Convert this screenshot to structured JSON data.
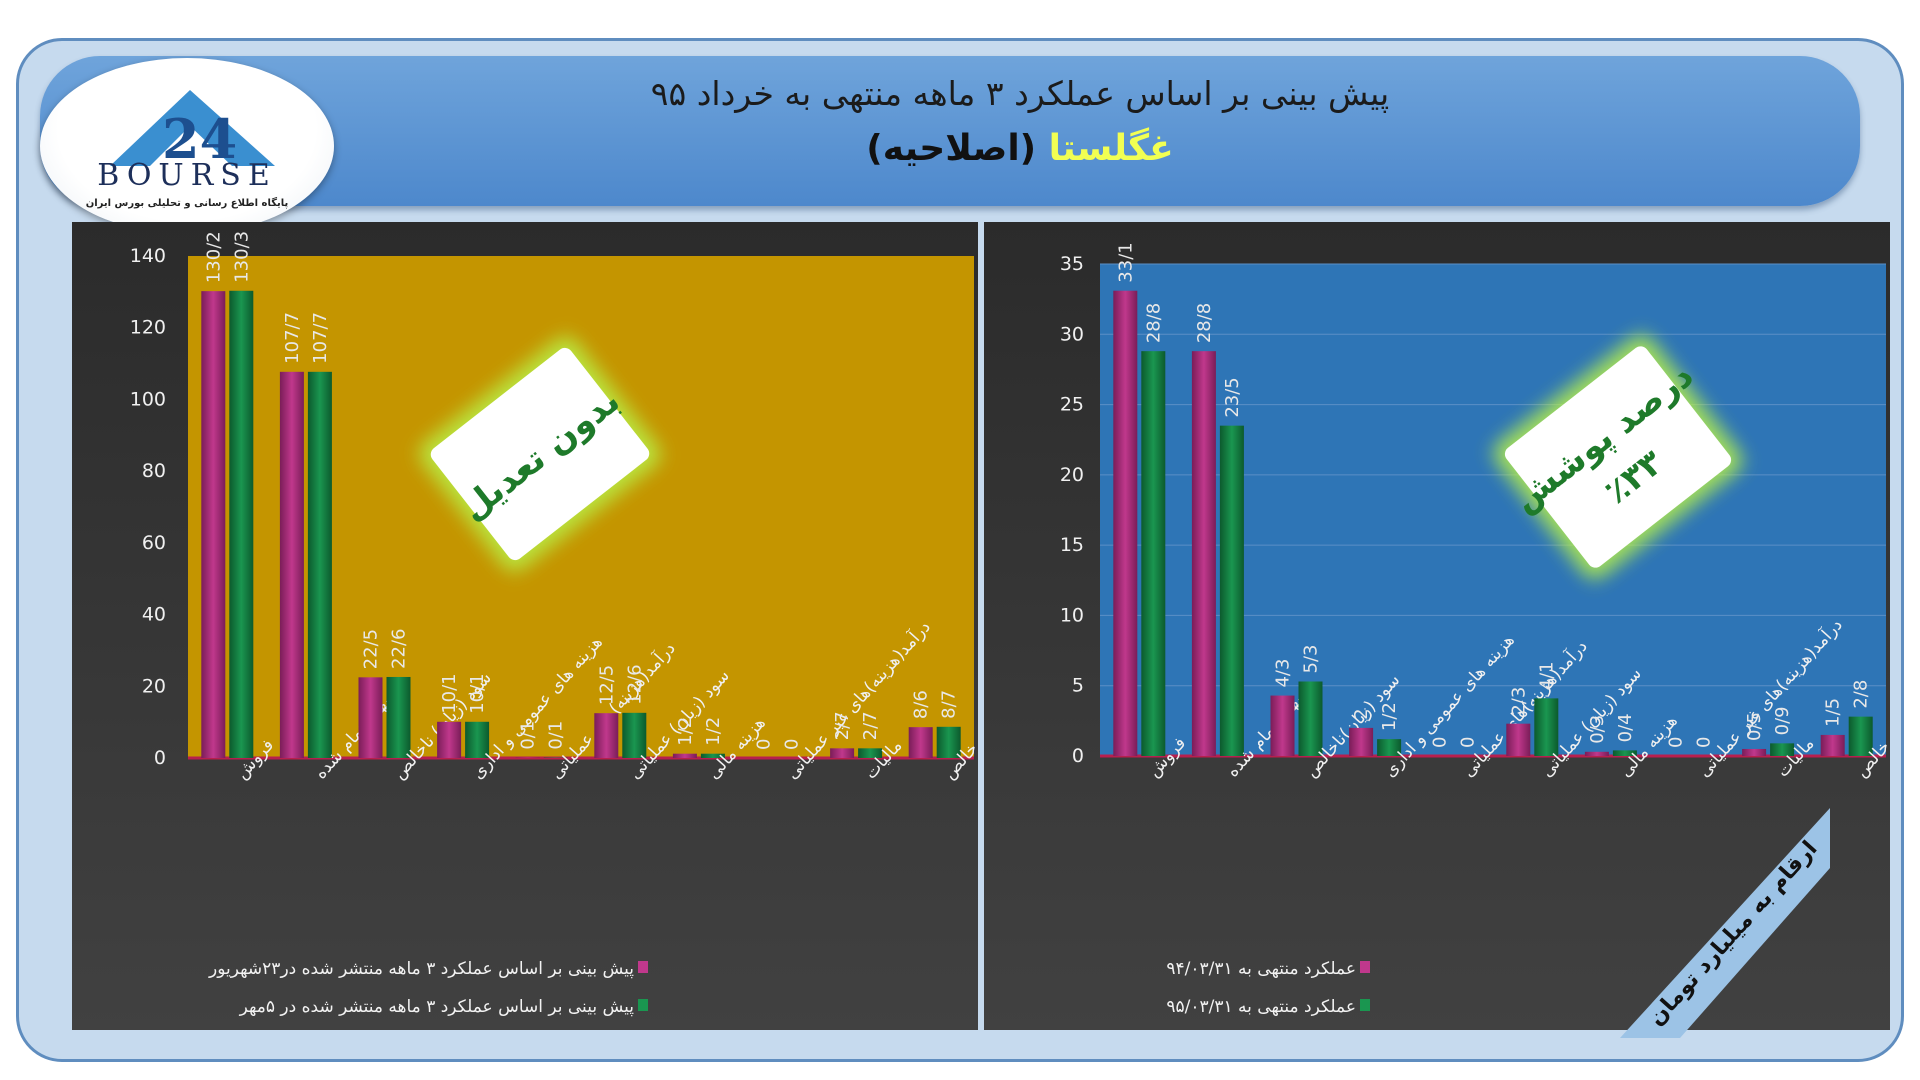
{
  "header": {
    "title": "پیش بینی بر اساس عملکرد ۳ ماهه منتهی به خرداد ۹۵",
    "subtitle_company": "غگلستا",
    "subtitle_suffix": " (اصلاحیه)"
  },
  "logo": {
    "text": "BOURSE",
    "tagline": "پایگاه اطلاع رسانی و تحلیلی بورس ایران"
  },
  "unit_note": "ارقام به میلیارد تومان",
  "colors": {
    "pink_series": "#c0388c",
    "green_series": "#1a9650",
    "left_plot_bg": "#c49500",
    "right_plot_bg": "#2e75b6",
    "badge_text": "#1e7a2a"
  },
  "chart_data": [
    {
      "type": "bar",
      "badge": "بدون تعدیل",
      "categories": [
        "فروش",
        "بهای تمام شده",
        "سود (زیان) ناخالص",
        "هزینه های عمومی و اداری",
        "درآمد(هزینه)های عملیاتی",
        "سود (زیان) عملیاتی",
        "هزینه مالی",
        "درآمد(هزینه)های غیر عملیاتی",
        "مالیات",
        "سود خالص"
      ],
      "series": [
        {
          "name": "پیش بینی بر اساس عملکرد ۳ ماهه منتشر شده در۲۳شهریور",
          "values": [
            130.2,
            107.7,
            22.5,
            10.1,
            0.1,
            12.5,
            1.2,
            0,
            2.7,
            8.6
          ],
          "labels": [
            "130/2",
            "107/7",
            "22/5",
            "10/1",
            "0/1",
            "12/5",
            "1/2",
            "0",
            "2/7",
            "8/6"
          ]
        },
        {
          "name": "پیش بینی بر اساس عملکرد ۳ ماهه منتشر شده در ۵مهر",
          "values": [
            130.3,
            107.7,
            22.6,
            10.1,
            0.1,
            12.6,
            1.2,
            0,
            2.7,
            8.7
          ],
          "labels": [
            "130/3",
            "107/7",
            "22/6",
            "10/1",
            "0/1",
            "12/6",
            "1/2",
            "0",
            "2/7",
            "8/7"
          ]
        }
      ],
      "yticks": [
        "0",
        "20",
        "40",
        "60",
        "80",
        "100",
        "120",
        "140"
      ],
      "ylim": [
        0,
        140
      ]
    },
    {
      "type": "bar",
      "badge_line1": "درصد پوشش",
      "badge_line2": "٪۳۳",
      "categories": [
        "فروش",
        "بهای تمام شده",
        "سود (زیان)ناخالص",
        "هزینه های عمومی و اداری",
        "درآمد(هزینه)های عملیاتی",
        "سود (زیان) عملیاتی",
        "هزینه مالی",
        "درآمد(هزینه)های غیر عملیاتی",
        "مالیات",
        "سود خالص"
      ],
      "series": [
        {
          "name": "عملکرد منتهی به ۹۴/۰۳/۳۱",
          "values": [
            33.1,
            28.8,
            4.3,
            2,
            0,
            2.3,
            0.3,
            0,
            0.5,
            1.5
          ],
          "labels": [
            "33/1",
            "28/8",
            "4/3",
            "2",
            "0",
            "2/3",
            "0/3",
            "0",
            "0/5",
            "1/5"
          ]
        },
        {
          "name": "عملکرد منتهی به ۹۵/۰۳/۳۱",
          "values": [
            28.8,
            23.5,
            5.3,
            1.2,
            0,
            4.1,
            0.4,
            0,
            0.9,
            2.8
          ],
          "labels": [
            "28/8",
            "23/5",
            "5/3",
            "1/2",
            "0",
            "4/1",
            "0/4",
            "0",
            "0/9",
            "2/8"
          ]
        }
      ],
      "yticks": [
        "0",
        "5",
        "10",
        "15",
        "20",
        "25",
        "30",
        "35"
      ],
      "ylim": [
        0,
        35
      ]
    }
  ]
}
